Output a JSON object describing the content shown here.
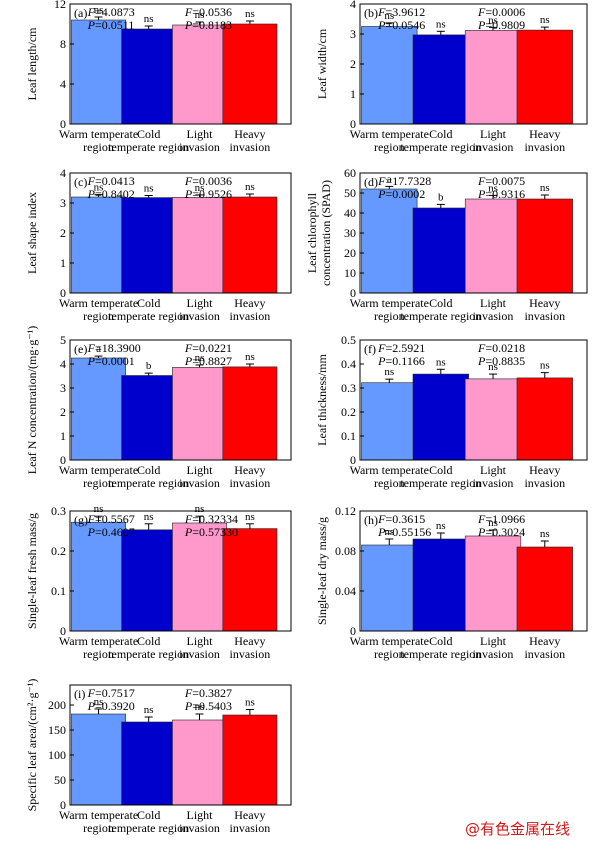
{
  "watermark": "@有色金属在线",
  "colors": [
    "#6699ff",
    "#0000cc",
    "#ff99cc",
    "#ff0000"
  ],
  "chart_data": [
    {
      "type": "bar",
      "panel": "(a)",
      "ylabel": "Leaf length/cm",
      "ylim": [
        0,
        12
      ],
      "yticks": [
        "0",
        "4",
        "8",
        "12"
      ],
      "categories": [
        [
          "Warm temperate",
          "region"
        ],
        [
          "Cold",
          "temperate region"
        ],
        [
          "Light",
          "invasion"
        ],
        [
          "Heavy",
          "invasion"
        ]
      ],
      "values": [
        10.4,
        9.5,
        9.9,
        10.0
      ],
      "errors": [
        0.3,
        0.3,
        0.3,
        0.3
      ],
      "sig": [
        "ns",
        "ns",
        "ns",
        "ns"
      ],
      "stats": [
        {
          "F": "=4.0873",
          "P": "=0.0511"
        },
        {
          "F": "=0.0536",
          "P": "=0.8183"
        }
      ]
    },
    {
      "type": "bar",
      "panel": "(b)",
      "ylabel": "Leaf width/cm",
      "ylim": [
        0,
        4
      ],
      "yticks": [
        "0",
        "1",
        "2",
        "3",
        "4"
      ],
      "categories": [
        [
          "Warm temperate",
          "region"
        ],
        [
          "Cold",
          "temperate region"
        ],
        [
          "Light",
          "invasion"
        ],
        [
          "Heavy",
          "invasion"
        ]
      ],
      "values": [
        3.25,
        2.97,
        3.12,
        3.13
      ],
      "errors": [
        0.12,
        0.12,
        0.1,
        0.1
      ],
      "sig": [
        "ns",
        "ns",
        "ns",
        "ns"
      ],
      "stats": [
        {
          "F": "=3.9612",
          "P": "=0.0546"
        },
        {
          "F": "=0.0006",
          "P": "=0.9809"
        }
      ]
    },
    {
      "type": "bar",
      "panel": "(c)",
      "ylabel": "Leaf shape index",
      "ylim": [
        0,
        4
      ],
      "yticks": [
        "0",
        "1",
        "2",
        "3",
        "4"
      ],
      "categories": [
        [
          "Warm temperate",
          "region"
        ],
        [
          "Cold",
          "temperate region"
        ],
        [
          "Light",
          "invasion"
        ],
        [
          "Heavy",
          "invasion"
        ]
      ],
      "values": [
        3.2,
        3.18,
        3.19,
        3.2
      ],
      "errors": [
        0.08,
        0.07,
        0.08,
        0.1
      ],
      "sig": [
        "ns",
        "ns",
        "ns",
        "ns"
      ],
      "stats": [
        {
          "F": "=0.0413",
          "P": "=0.8402"
        },
        {
          "F": "=0.0036",
          "P": "=0.9526"
        }
      ]
    },
    {
      "type": "bar",
      "panel": "(d)",
      "ylabel": [
        "Leaf chlorophyll",
        "concentration (SPAD)"
      ],
      "ylim": [
        0,
        60
      ],
      "yticks": [
        "0",
        "10",
        "20",
        "30",
        "40",
        "50",
        "60"
      ],
      "categories": [
        [
          "Warm temperate",
          "region"
        ],
        [
          "Cold",
          "temperate region"
        ],
        [
          "Light",
          "invasion"
        ],
        [
          "Heavy",
          "invasion"
        ]
      ],
      "values": [
        52,
        42.5,
        47,
        47
      ],
      "errors": [
        1.3,
        1.8,
        1.8,
        2.0
      ],
      "sig": [
        "a",
        "b",
        "ns",
        "ns"
      ],
      "stats": [
        {
          "F": "=17.7328",
          "P": "=0.0002"
        },
        {
          "F": "=0.0075",
          "P": "=0.9316"
        }
      ]
    },
    {
      "type": "bar",
      "panel": "(e)",
      "ylabel": "Leaf N concentration/(mg·g⁻¹)",
      "ylim": [
        0,
        5
      ],
      "yticks": [
        "0",
        "1",
        "2",
        "3",
        "4",
        "5"
      ],
      "categories": [
        [
          "Warm temperate",
          "region"
        ],
        [
          "Cold",
          "temperate region"
        ],
        [
          "Light",
          "invasion"
        ],
        [
          "Heavy",
          "invasion"
        ]
      ],
      "values": [
        4.25,
        3.52,
        3.86,
        3.88
      ],
      "errors": [
        0.08,
        0.1,
        0.1,
        0.12
      ],
      "sig": [
        "a",
        "b",
        "ns",
        "ns"
      ],
      "stats": [
        {
          "F": "=18.3900",
          "P": "=0.0001"
        },
        {
          "F": "=0.0221",
          "P": "=0.8827"
        }
      ]
    },
    {
      "type": "bar",
      "panel": "(f)",
      "ylabel": "Leaf thickness/mm",
      "ylim": [
        0,
        0.5
      ],
      "yticks": [
        "0",
        "0.1",
        "0.2",
        "0.3",
        "0.4",
        "0.5"
      ],
      "categories": [
        [
          "Warm temperate",
          "region"
        ],
        [
          "Cold",
          "temperate region"
        ],
        [
          "Light",
          "invasion"
        ],
        [
          "Heavy",
          "invasion"
        ]
      ],
      "values": [
        0.322,
        0.358,
        0.338,
        0.342
      ],
      "errors": [
        0.015,
        0.02,
        0.02,
        0.022
      ],
      "sig": [
        "ns",
        "ns",
        "ns",
        "ns"
      ],
      "stats": [
        {
          "F": "=2.5921",
          "P": "=0.1166"
        },
        {
          "F": "=0.0218",
          "P": "=0.8835"
        }
      ]
    },
    {
      "type": "bar",
      "panel": "(g)",
      "ylabel": "Single-leaf fresh mass/g",
      "ylim": [
        0,
        0.3
      ],
      "yticks": [
        "0",
        "0.1",
        "0.2",
        "0.3"
      ],
      "categories": [
        [
          "Warm temperate",
          "region"
        ],
        [
          "Cold",
          "temperate region"
        ],
        [
          "Light",
          "invasion"
        ],
        [
          "Heavy",
          "invasion"
        ]
      ],
      "values": [
        0.272,
        0.253,
        0.27,
        0.256
      ],
      "errors": [
        0.015,
        0.015,
        0.017,
        0.012
      ],
      "sig": [
        "ns",
        "ns",
        "ns",
        "ns"
      ],
      "stats": [
        {
          "F": "=0.5567",
          "P": "=0.4607"
        },
        {
          "F": "=0.32334",
          "P": "=0.57330"
        }
      ]
    },
    {
      "type": "bar",
      "panel": "(h)",
      "ylabel": "Single-leaf dry mass/g",
      "ylim": [
        0,
        0.12
      ],
      "yticks": [
        "0",
        "0.04",
        "0.08",
        "0.12"
      ],
      "categories": [
        [
          "Warm temperate",
          "region"
        ],
        [
          "Cold",
          "temperate region"
        ],
        [
          "Light",
          "invasion"
        ],
        [
          "Heavy",
          "invasion"
        ]
      ],
      "values": [
        0.086,
        0.092,
        0.095,
        0.084
      ],
      "errors": [
        0.006,
        0.006,
        0.006,
        0.006
      ],
      "sig": [
        "ns",
        "ns",
        "ns",
        "ns"
      ],
      "stats": [
        {
          "F": "=0.3615",
          "P": "=0.55156"
        },
        {
          "F": "=1.0966",
          "P": "=0.3024"
        }
      ]
    },
    {
      "type": "bar",
      "panel": "(i)",
      "ylabel": "Specific leaf area/(cm²·g⁻¹)",
      "ylim": [
        0,
        240
      ],
      "yticks": [
        "0",
        "50",
        "100",
        "150",
        "200"
      ],
      "categories": [
        [
          "Warm temperate",
          "region"
        ],
        [
          "Cold",
          "temperate region"
        ],
        [
          "Light",
          "invasion"
        ],
        [
          "Heavy",
          "invasion"
        ]
      ],
      "values": [
        182,
        166,
        170,
        180
      ],
      "errors": [
        10,
        10,
        12,
        11
      ],
      "sig": [
        "ns",
        "ns",
        "ns",
        "ns"
      ],
      "stats": [
        {
          "F": "=0.7517",
          "P": "=0.3920"
        },
        {
          "F": "=0.3827",
          "P": "=0.5403"
        }
      ]
    }
  ]
}
